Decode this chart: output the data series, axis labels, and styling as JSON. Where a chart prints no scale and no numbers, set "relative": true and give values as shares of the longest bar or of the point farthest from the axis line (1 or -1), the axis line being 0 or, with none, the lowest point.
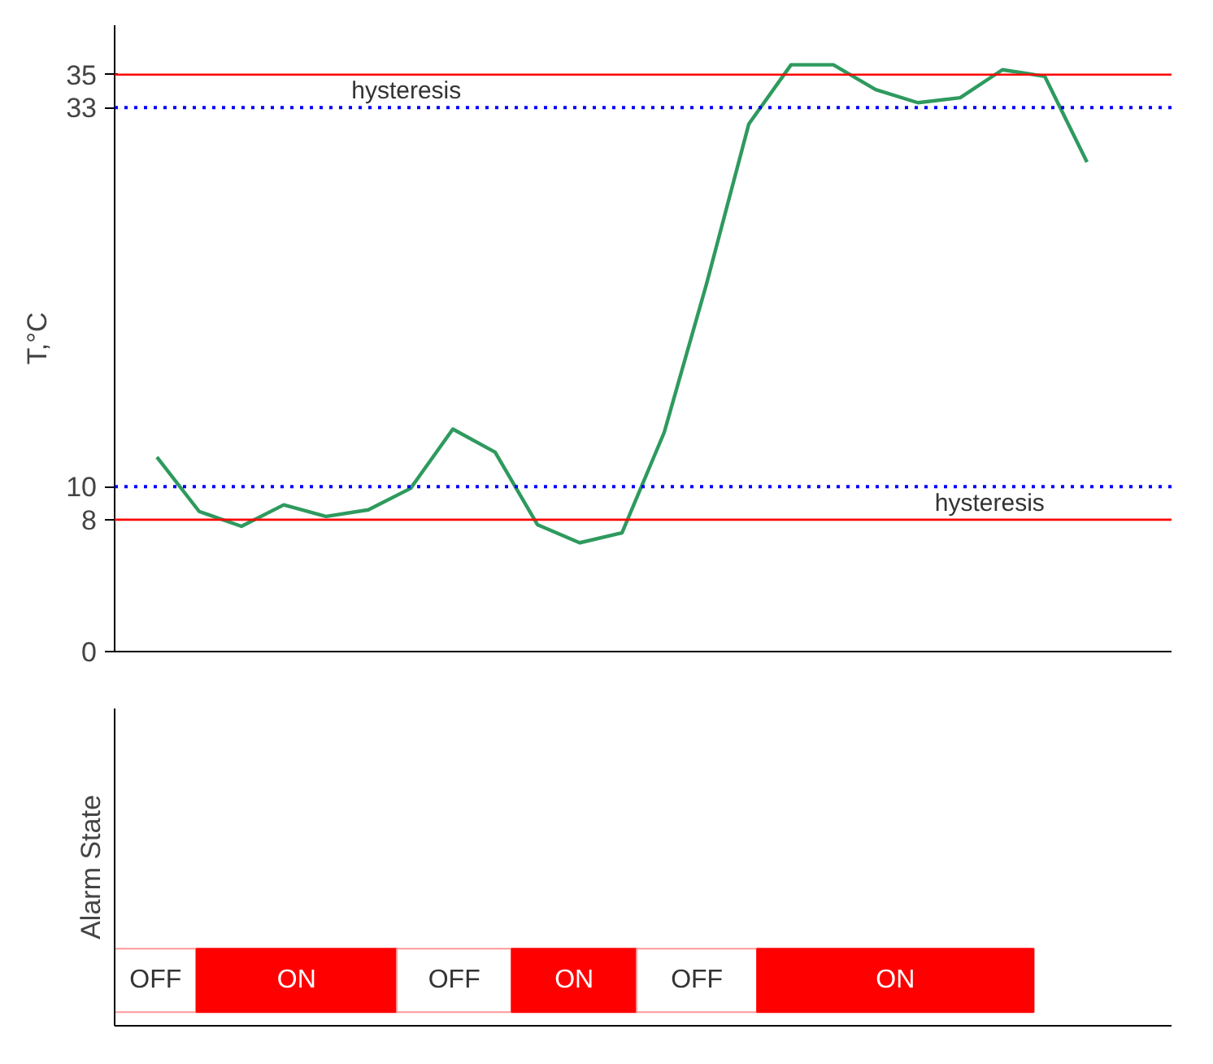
{
  "chart_data": [
    {
      "type": "line",
      "ylabel": "T,°C",
      "categories": [
        null,
        null,
        null,
        null,
        null,
        null,
        null,
        null,
        null,
        null,
        null,
        null,
        null,
        null,
        null,
        null,
        null,
        null,
        null,
        null,
        null,
        null,
        null
      ],
      "series": [
        {
          "color": "#2e9a5e",
          "values": [
            11.8,
            8.5,
            7.6,
            8.9,
            8.2,
            8.6,
            9.9,
            13.5,
            12.1,
            7.7,
            6.6,
            7.2,
            13.3,
            22.3,
            32.0,
            35.6,
            35.6,
            34.1,
            33.3,
            33.6,
            35.3,
            34.9,
            29.7
          ]
        }
      ],
      "ylim": [
        0,
        38
      ],
      "yticks": [
        0,
        8,
        10,
        33,
        35
      ],
      "ref_lines": [
        {
          "axis": "y",
          "value": 35,
          "color": "#ff0000",
          "line_style": "solid"
        },
        {
          "axis": "y",
          "value": 33,
          "color": "#0000ff",
          "line_style": "dotted"
        },
        {
          "axis": "y",
          "value": 10,
          "color": "#0000ff",
          "line_style": "dotted"
        },
        {
          "axis": "y",
          "value": 8,
          "color": "#ff0000",
          "line_style": "solid"
        }
      ],
      "annotations": [
        "hysteresis",
        "hysteresis"
      ],
      "grid": false,
      "marker": "none",
      "line_style": "solid",
      "tick_labels": "y"
    },
    {
      "type": "bar",
      "orientation": "horizontal",
      "stacked": true,
      "relative": true,
      "ylabel": "Alarm State",
      "categories": [
        null
      ],
      "series": [
        {
          "name": "OFF",
          "color": "#ffffff",
          "values": [
            0.089
          ]
        },
        {
          "name": "ON",
          "color": "#ff0000",
          "values": [
            0.218
          ]
        },
        {
          "name": "OFF",
          "color": "#ffffff",
          "values": [
            0.125
          ]
        },
        {
          "name": "ON",
          "color": "#ff0000",
          "values": [
            0.136
          ]
        },
        {
          "name": "OFF",
          "color": "#ffffff",
          "values": [
            0.131
          ]
        },
        {
          "name": "ON",
          "color": "#ff0000",
          "values": [
            0.301
          ]
        }
      ],
      "grid": false,
      "tick_labels": false
    }
  ]
}
